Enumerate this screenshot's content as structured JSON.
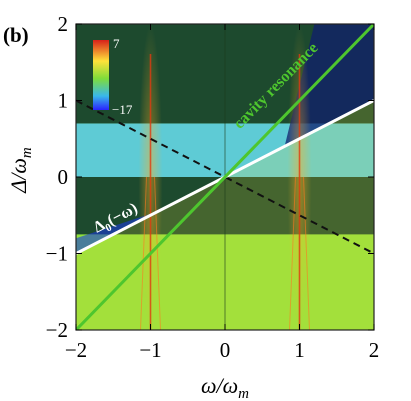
{
  "chart_data": {
    "type": "heatmap",
    "panel_label": "(b)",
    "xlabel": "ω/ω",
    "xlabel_sub": "m",
    "ylabel": "Δ/ω",
    "ylabel_sub": "m",
    "xlim": [
      -2,
      2
    ],
    "ylim": [
      -2,
      2
    ],
    "x_ticks": [
      -2,
      -1,
      0,
      1,
      2
    ],
    "y_ticks": [
      -2,
      -1,
      0,
      1,
      2
    ],
    "x_tick_labels": [
      "−2",
      "−1",
      "0",
      "1",
      "2"
    ],
    "y_tick_labels": [
      "−2",
      "−1",
      "0",
      "1",
      "2"
    ],
    "colorbar": {
      "max_label": "7",
      "min_label": "−17",
      "max": 7,
      "min": -17
    },
    "colors": {
      "high": "#e03a10",
      "mid_high": "#ffe43a",
      "mid": "#8fe03c",
      "mid_low": "#59c9e6",
      "low": "#101f6e",
      "resonance_line": "#4ec62e",
      "detuning_line": "#ffffff",
      "dashed_line": "#111111"
    },
    "dark_bands": [
      {
        "y_from": 0.7,
        "y_to": 2.0
      },
      {
        "y_from": -0.75,
        "y_to": 0.0
      }
    ],
    "bright_bands": [
      {
        "y_from": 0.0,
        "y_to": 0.7
      },
      {
        "y_from": -2.0,
        "y_to": -0.75
      }
    ],
    "resonance_columns_x": [
      -1,
      1
    ],
    "lines": [
      {
        "name": "cavity resonance",
        "label_text": "cavity resonance",
        "x": [
          -2,
          2
        ],
        "y": [
          -2,
          2
        ],
        "style": "solid"
      },
      {
        "name": "detuning",
        "label_text": "Δ",
        "label_sub": "0",
        "label_suffix": "(−ω)",
        "x": [
          -2,
          2
        ],
        "y": [
          -1,
          1
        ],
        "style": "solid"
      },
      {
        "name": "dashed",
        "label_text": "",
        "x": [
          -2,
          2
        ],
        "y": [
          1,
          -1
        ],
        "style": "dashed"
      }
    ]
  }
}
